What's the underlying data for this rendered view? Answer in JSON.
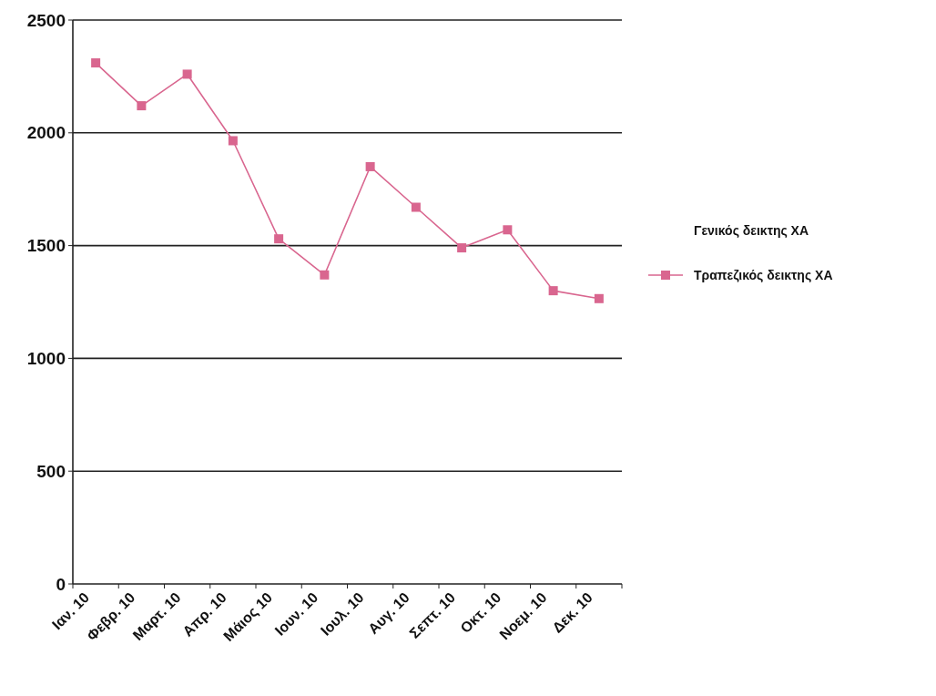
{
  "chart_data": {
    "type": "line",
    "categories": [
      "Ιαν. 10",
      "Φεβρ. 10",
      "Μαρτ. 10",
      "Απρ. 10",
      "Μάιος 10",
      "Ιουν. 10",
      "Ιουλ. 10",
      "Αυγ. 10",
      "Σεπτ. 10",
      "Οκτ. 10",
      "Νοεμ. 10",
      "Δεκ. 10"
    ],
    "series": [
      {
        "name": "Τραπεζικός δεικτης ΧΑ",
        "color": "#d9668f",
        "values": [
          2310,
          2120,
          2260,
          1965,
          1530,
          1370,
          1850,
          1670,
          1490,
          1570,
          1300,
          1265
        ]
      }
    ],
    "ylim": [
      0,
      2500
    ],
    "yticks": [
      0,
      500,
      1000,
      1500,
      2000,
      2500
    ],
    "grid": "y",
    "legend": "right",
    "marker": "square",
    "line_style": "solid",
    "annotations": [
      "Γενικός δεικτης ΧΑ"
    ]
  }
}
